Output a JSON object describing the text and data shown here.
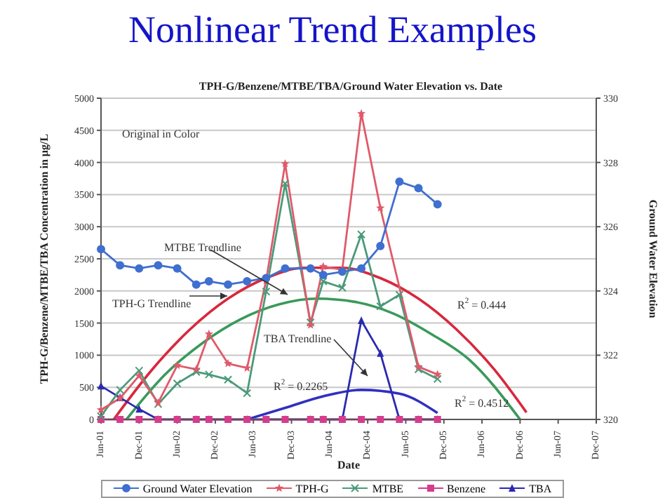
{
  "chart_data": {
    "type": "line",
    "title": "Nonlinear Trend Examples",
    "subtitle": "TPH-G/Benzene/MTBE/TBA/Ground Water Elevation vs. Date",
    "xlabel": "Date",
    "ylabel": "TPH-G/Benzene/MTBE/TBA Concentration in µg/L",
    "y2label": "Ground Water Elevation",
    "x": [
      "2001-06",
      "2001-09",
      "2001-12",
      "2002-03",
      "2002-06",
      "2002-09",
      "2002-11",
      "2003-02",
      "2003-05",
      "2003-08",
      "2003-11",
      "2004-03",
      "2004-05",
      "2004-08",
      "2004-11",
      "2005-02",
      "2005-05",
      "2005-08",
      "2005-11"
    ],
    "series": [
      {
        "name": "Ground Water Elevation",
        "color": "#3f6fd0",
        "axis": "y2",
        "marker": "circle",
        "values": [
          325.3,
          324.8,
          324.7,
          324.8,
          324.7,
          324.2,
          324.3,
          324.2,
          324.3,
          324.4,
          324.7,
          324.7,
          324.5,
          324.6,
          324.7,
          325.4,
          327.4,
          327.2,
          326.7
        ]
      },
      {
        "name": "TPH-G",
        "color": "#e05a6a",
        "marker": "star",
        "x": [
          "2001-06",
          "2001-09",
          "2001-12",
          "2002-03",
          "2002-06",
          "2002-09",
          "2002-11",
          "2003-02",
          "2003-05",
          "2003-08",
          "2003-11",
          "2004-03",
          "2004-05",
          "2004-08",
          "2004-11",
          "2005-02",
          "2005-08",
          "2005-11"
        ],
        "values": [
          150,
          330,
          680,
          260,
          840,
          780,
          1330,
          870,
          800,
          2160,
          3980,
          1470,
          2380,
          2330,
          4760,
          3290,
          820,
          700
        ]
      },
      {
        "name": "MTBE",
        "color": "#4a9a7a",
        "marker": "cross",
        "values": [
          50,
          460,
          760,
          240,
          560,
          740,
          700,
          620,
          410,
          1990,
          3670,
          1510,
          2150,
          2050,
          2880,
          1760,
          1940,
          780,
          630
        ]
      },
      {
        "name": "Benzene",
        "color": "#d63c8c",
        "marker": "square",
        "values": [
          0,
          0,
          0,
          0,
          0,
          0,
          0,
          0,
          0,
          0,
          0,
          0,
          0,
          0,
          0,
          0,
          0,
          0,
          0
        ]
      },
      {
        "name": "TBA",
        "color": "#2a2ab0",
        "marker": "triangle",
        "values": [
          520,
          340,
          160,
          0,
          0,
          0,
          0,
          0,
          0,
          0,
          0,
          0,
          0,
          0,
          1540,
          1030,
          0,
          0,
          0
        ]
      },
      {
        "type": "line",
        "color": "#d8283c",
        "marker": "none",
        "x": [
          "2001-08",
          "2002-02",
          "2002-08",
          "2003-02",
          "2003-08",
          "2004-02",
          "2004-08",
          "2005-02",
          "2005-08",
          "2006-02",
          "2006-08",
          "2007-01"
        ],
        "values": [
          0,
          770,
          1400,
          1880,
          2200,
          2360,
          2360,
          2200,
          1880,
          1400,
          770,
          110
        ]
      },
      {
        "type": "line",
        "color": "#3a9a5a",
        "marker": "none",
        "x": [
          "2001-10",
          "2002-04",
          "2002-10",
          "2003-04",
          "2003-10",
          "2004-04",
          "2004-10",
          "2005-04",
          "2005-10",
          "2006-04",
          "2006-12"
        ],
        "values": [
          0,
          690,
          1190,
          1560,
          1790,
          1880,
          1830,
          1650,
          1330,
          930,
          0
        ]
      },
      {
        "type": "line",
        "color": "#3030c0",
        "marker": "none",
        "x": [
          "2003-05",
          "2003-11",
          "2004-05",
          "2004-11",
          "2005-05",
          "2005-11"
        ],
        "values": [
          0,
          180,
          360,
          460,
          400,
          100
        ]
      }
    ],
    "xlim": [
      "2001-06",
      "2007-12"
    ],
    "xticks": [
      {
        "value": "2001-06",
        "label": "Jun-01"
      },
      {
        "value": "2001-12",
        "label": "Dec-01"
      },
      {
        "value": "2002-06",
        "label": "Jun-02"
      },
      {
        "value": "2002-12",
        "label": "Dec-02"
      },
      {
        "value": "2003-06",
        "label": "Jun-03"
      },
      {
        "value": "2003-12",
        "label": "Dec-03"
      },
      {
        "value": "2004-06",
        "label": "Jun-04"
      },
      {
        "value": "2004-12",
        "label": "Dec-04"
      },
      {
        "value": "2005-06",
        "label": "Jun-05"
      },
      {
        "value": "2005-12",
        "label": "Dec-05"
      },
      {
        "value": "2006-06",
        "label": "Jun-06"
      },
      {
        "value": "2006-12",
        "label": "Dec-06"
      },
      {
        "value": "2007-06",
        "label": "Jun-07"
      },
      {
        "value": "2007-12",
        "label": "Dec-07"
      }
    ],
    "ylim": [
      0,
      5000
    ],
    "yticks": [
      0,
      500,
      1000,
      1500,
      2000,
      2500,
      3000,
      3500,
      4000,
      4500,
      5000
    ],
    "y2lim": [
      320,
      330
    ],
    "y2ticks": [
      320,
      322,
      324,
      326,
      328,
      330
    ],
    "grid": "y",
    "legend": "bottom",
    "line_style": "solid",
    "annotations": [
      "Original in Color",
      "MTBE Trendline",
      "TPH-G Trendline",
      "TBA  Trendline",
      "R$^{2}$ = 0.444",
      "R$^{2}$ = 0.2265",
      "R$^{2}$ = 0.4512"
    ]
  }
}
